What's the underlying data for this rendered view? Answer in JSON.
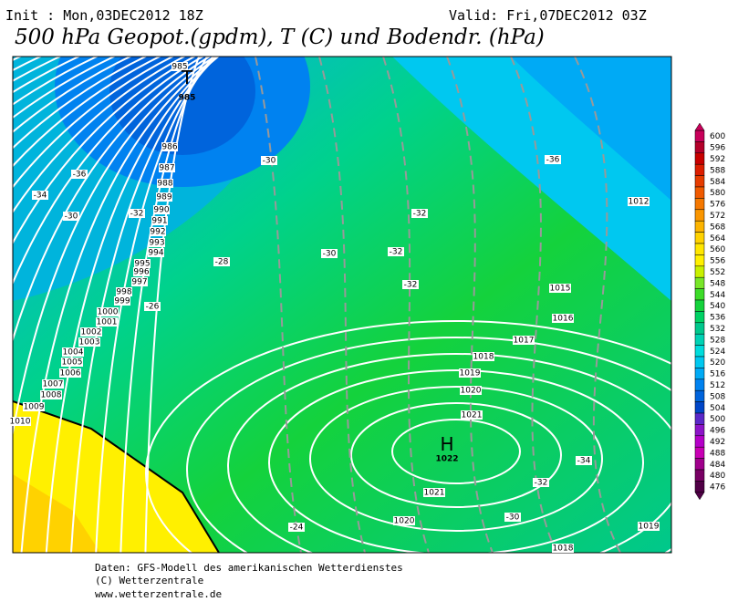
{
  "header": {
    "init": "Init : Mon,03DEC2012 18Z",
    "valid": "Valid: Fri,07DEC2012 03Z",
    "title": "500 hPa Geopot.(gpdm), T (C) und Bodendr. (hPa)"
  },
  "low": {
    "letter": "T",
    "value": 985
  },
  "high": {
    "letter": "H",
    "value": 1022
  },
  "pressure_labels": [
    985,
    986,
    987,
    988,
    989,
    990,
    991,
    992,
    993,
    994,
    995,
    996,
    997,
    998,
    999,
    1000,
    1001,
    1002,
    1003,
    1004,
    1005,
    1006,
    1007,
    1008,
    1009,
    1010,
    1012,
    1015,
    1016,
    1017,
    1018,
    1019,
    1020,
    1021,
    1021,
    1020,
    1019,
    1018
  ],
  "temperature_labels": [
    -36,
    -34,
    -30,
    -32,
    -30,
    -28,
    -26,
    -30,
    -32,
    -32,
    -32,
    -36,
    -34,
    -32,
    -30,
    -24
  ],
  "legend": {
    "levels": [
      600,
      596,
      592,
      588,
      584,
      580,
      576,
      572,
      568,
      564,
      560,
      556,
      552,
      548,
      544,
      540,
      536,
      532,
      528,
      524,
      520,
      516,
      512,
      508,
      504,
      500,
      496,
      492,
      488,
      484,
      480,
      476
    ],
    "colors": [
      "#c8005a",
      "#b4002a",
      "#c80000",
      "#dc1e00",
      "#e63c00",
      "#f05a00",
      "#f57800",
      "#fa9600",
      "#fcb400",
      "#ffd200",
      "#ffe600",
      "#fff000",
      "#c8f000",
      "#78e628",
      "#3cdc28",
      "#14d23c",
      "#00d264",
      "#00c88c",
      "#00d2b4",
      "#00dcdc",
      "#00c8f0",
      "#00aaf5",
      "#0082f0",
      "#0064dc",
      "#0046c8",
      "#5a28c8",
      "#8c14c8",
      "#b400c8",
      "#c800b4",
      "#a0008c",
      "#780064",
      "#500046"
    ]
  },
  "footer": [
    "Daten: GFS-Modell des amerikanischen Wetterdienstes",
    "(C) Wetterzentrale",
    "www.wetterzentrale.de"
  ]
}
